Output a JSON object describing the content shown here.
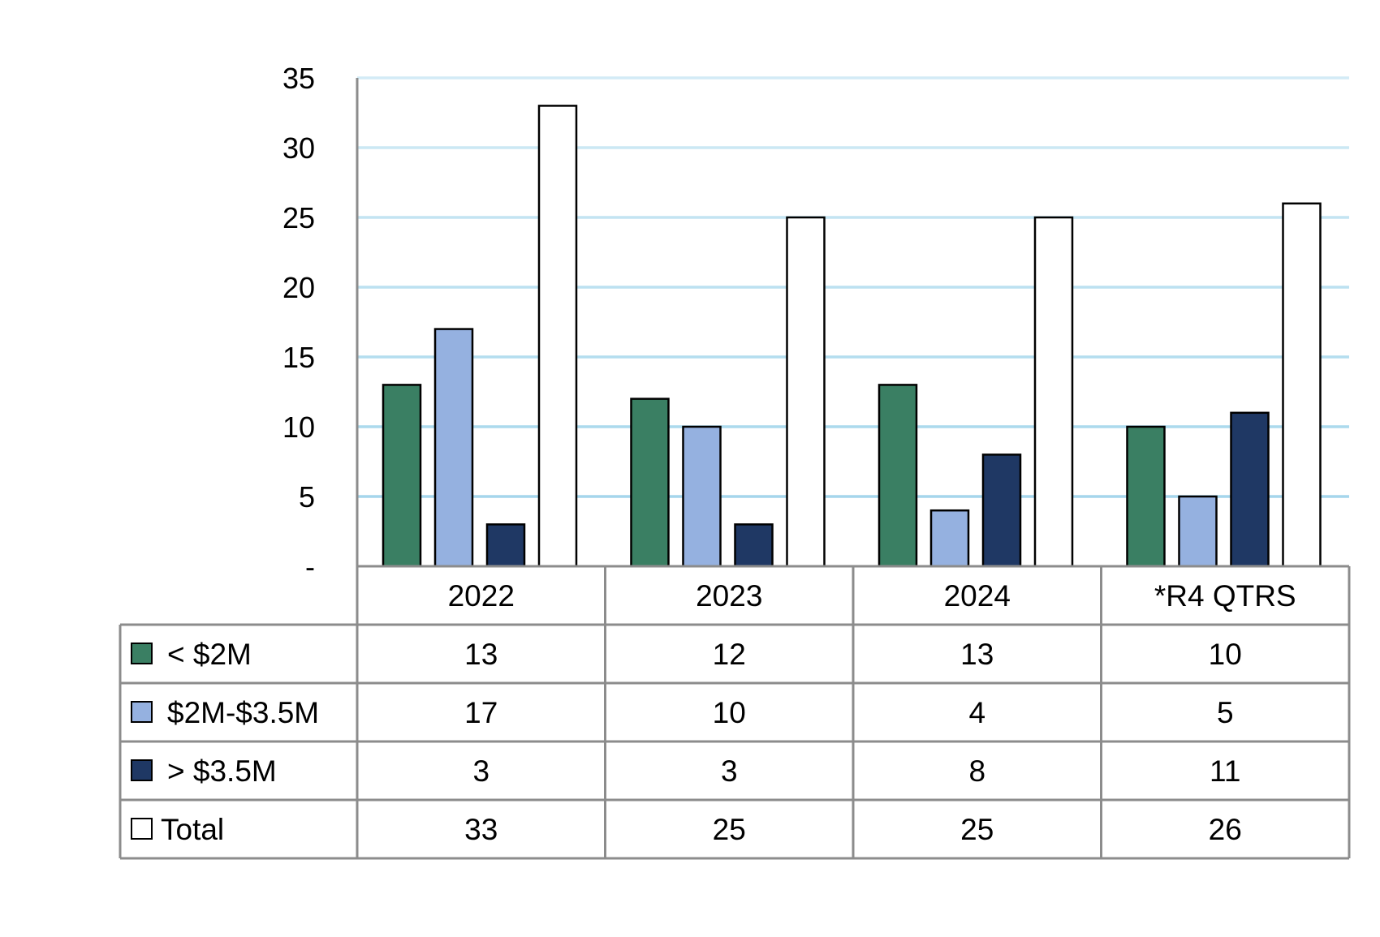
{
  "chart_data": {
    "type": "bar",
    "title": "",
    "xlabel": "",
    "ylabel": "",
    "ylim": [
      0,
      35
    ],
    "yticks": [
      0,
      5,
      10,
      15,
      20,
      25,
      30,
      35
    ],
    "ytick_labels": [
      "-",
      "5",
      "10",
      "15",
      "20",
      "25",
      "30",
      "35"
    ],
    "categories": [
      "2022",
      "2023",
      "2024",
      "*R4 QTRS"
    ],
    "series": [
      {
        "name": "< $2M",
        "values": [
          13,
          12,
          13,
          10
        ],
        "color": "#3a7f63"
      },
      {
        "name": "$2M-$3.5M",
        "values": [
          17,
          10,
          4,
          5
        ],
        "color": "#95b1e0"
      },
      {
        "name": "> $3.5M",
        "values": [
          3,
          3,
          8,
          11
        ],
        "color": "#1f3864"
      },
      {
        "name": "Total",
        "values": [
          33,
          25,
          25,
          26
        ],
        "color": "#ffffff"
      }
    ],
    "grid": true,
    "grid_color": "#9dd3ea",
    "legend": "data-table-left"
  }
}
